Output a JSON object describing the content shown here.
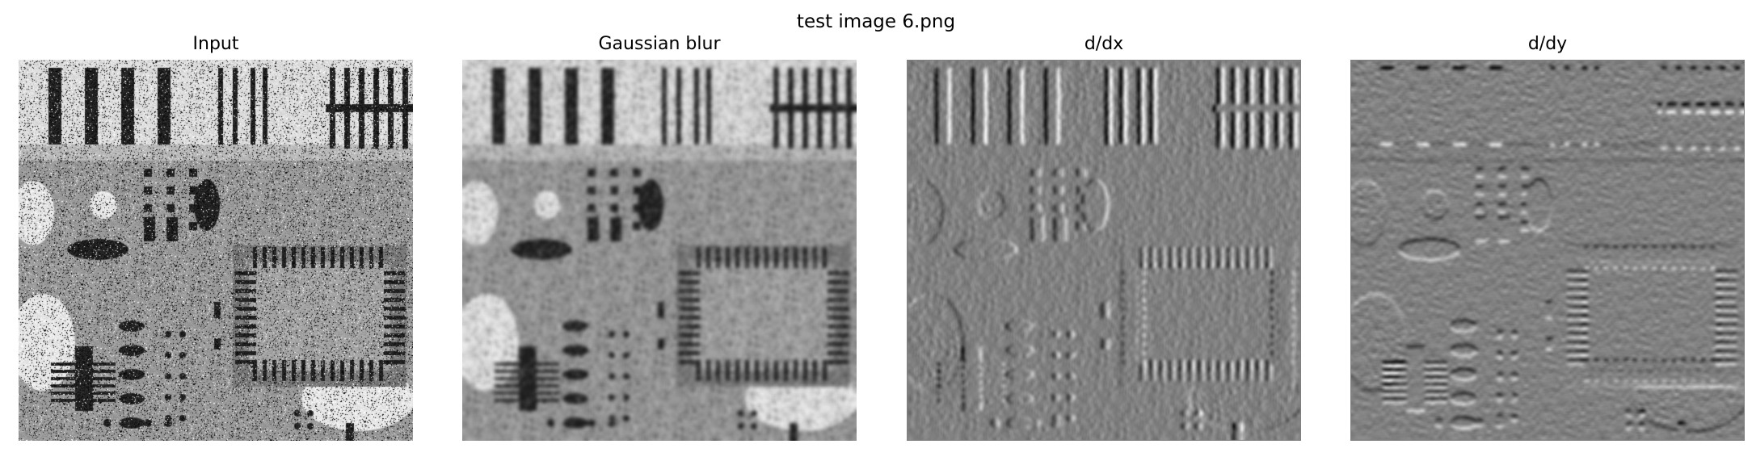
{
  "figure": {
    "title": "test image 6.png"
  },
  "panels": [
    {
      "title": "Input",
      "kind": "noisy"
    },
    {
      "title": "Gaussian blur",
      "kind": "blur"
    },
    {
      "title": "d/dx",
      "kind": "dx"
    },
    {
      "title": "d/dy",
      "kind": "dy"
    }
  ]
}
